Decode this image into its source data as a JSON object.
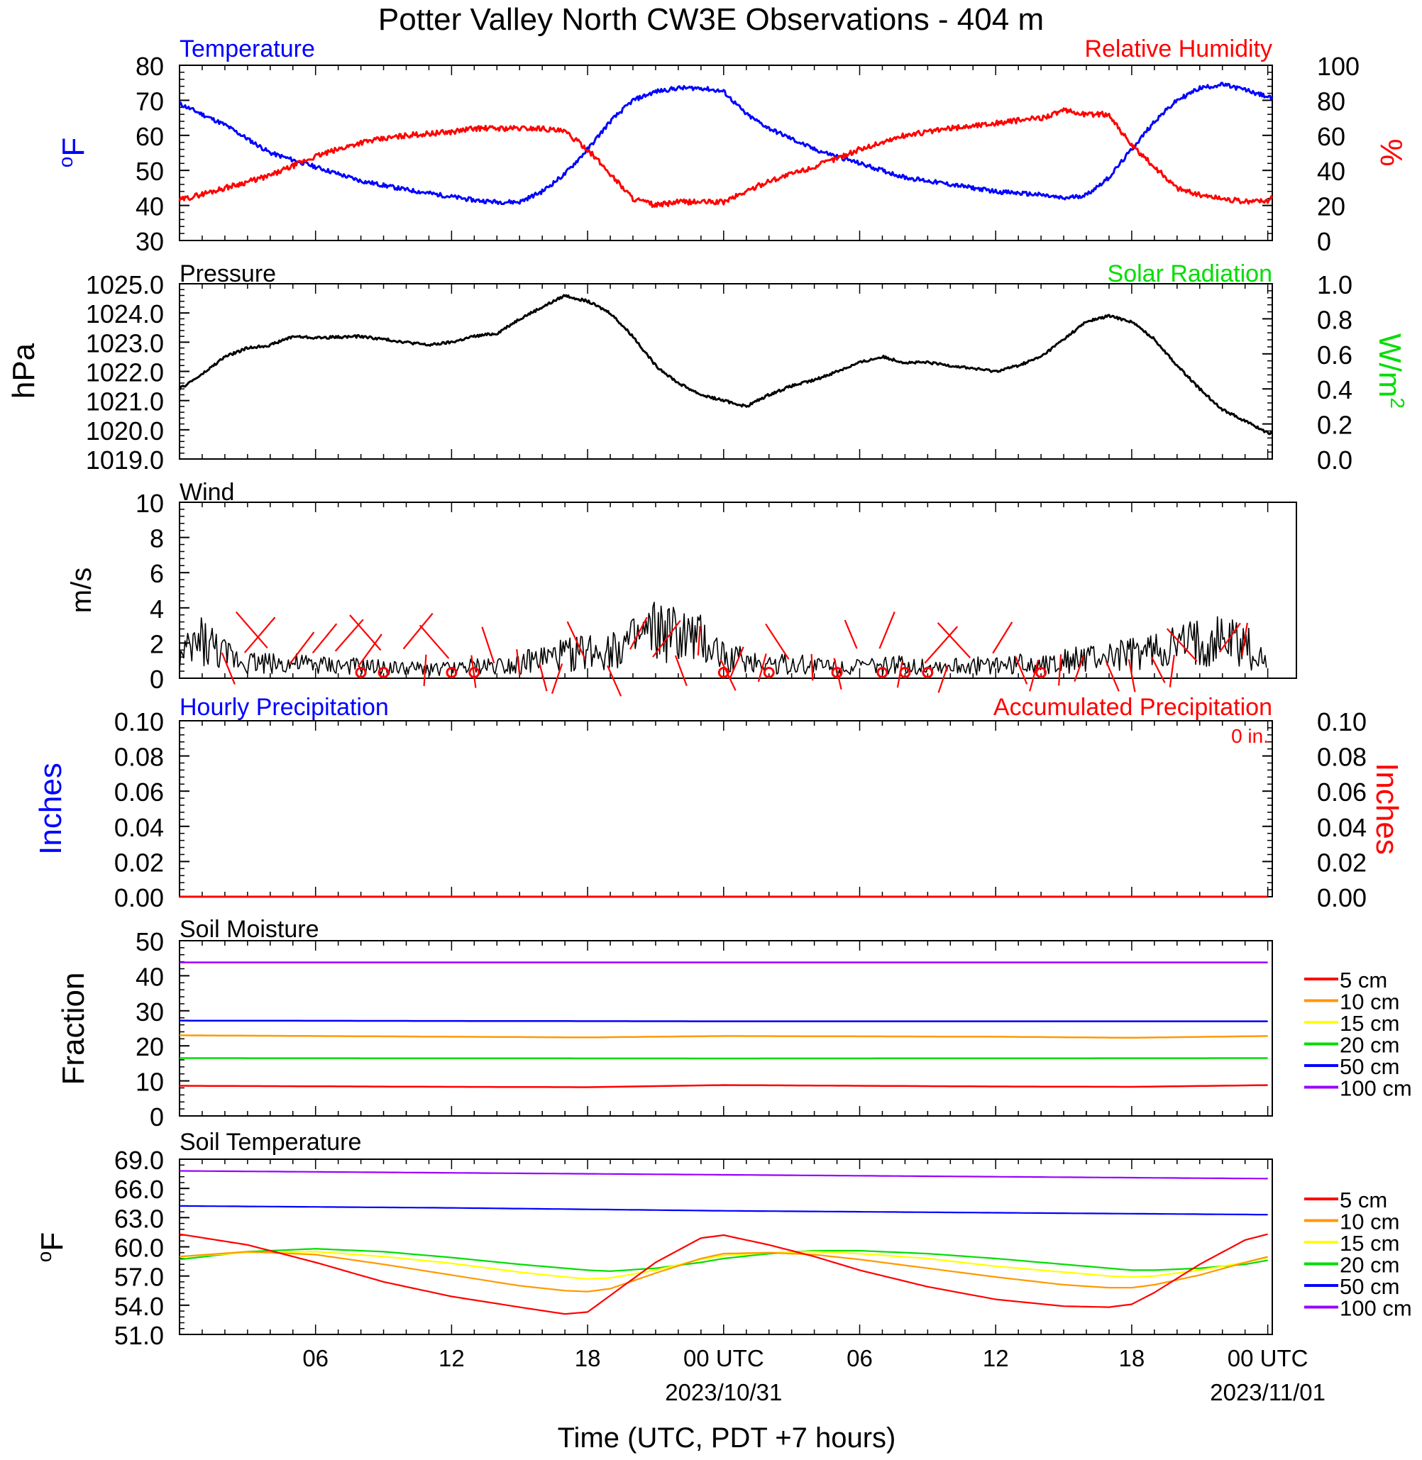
{
  "title": "Potter Valley North CW3E Observations - 404 m",
  "x_axis": {
    "label": "Time (UTC, PDT +7 hours)",
    "ticks": [
      {
        "hour": 6,
        "label": "06",
        "date": ""
      },
      {
        "hour": 12,
        "label": "12",
        "date": ""
      },
      {
        "hour": 18,
        "label": "18",
        "date": ""
      },
      {
        "hour": 24,
        "label": "00 UTC",
        "date": "2023/10/31"
      },
      {
        "hour": 30,
        "label": "06",
        "date": ""
      },
      {
        "hour": 36,
        "label": "12",
        "date": ""
      },
      {
        "hour": 42,
        "label": "18",
        "date": ""
      },
      {
        "hour": 48,
        "label": "00 UTC",
        "date": "2023/11/01"
      }
    ],
    "range_hours": [
      0,
      48.2
    ]
  },
  "colors": {
    "blue": "#0000ff",
    "red": "#ff0000",
    "green": "#00dd00",
    "black": "#000000",
    "orange": "#ff9900",
    "yellow": "#ffff00",
    "purple": "#9900ff"
  },
  "panels": {
    "temp_rh": {
      "left_title": "Temperature",
      "right_title": "Relative Humidity",
      "left_unit_base": "o",
      "left_unit_text": "F",
      "right_unit": "%",
      "left_ticks": [
        "80",
        "70",
        "60",
        "50",
        "40",
        "30"
      ],
      "right_ticks": [
        "100",
        "80",
        "60",
        "40",
        "20",
        "0"
      ]
    },
    "pressure": {
      "left_title": "Pressure",
      "right_title": "Solar Radiation",
      "left_unit": "hPa",
      "right_unit_text": "W/m",
      "right_unit_sup": "2",
      "left_ticks": [
        "1025.0",
        "1024.0",
        "1023.0",
        "1022.0",
        "1021.0",
        "1020.0",
        "1019.0"
      ],
      "right_ticks": [
        "1.0",
        "0.8",
        "0.6",
        "0.4",
        "0.2",
        "0.0"
      ]
    },
    "wind": {
      "left_title": "Wind",
      "left_unit": "m/s",
      "left_ticks": [
        "10",
        "8",
        "6",
        "4",
        "2",
        "0"
      ]
    },
    "precip": {
      "left_title": "Hourly Precipitation",
      "right_title": "Accumulated Precipitation",
      "annotation": "0 in.",
      "left_unit": "Inches",
      "right_unit": "Inches",
      "left_ticks": [
        "0.10",
        "0.08",
        "0.06",
        "0.04",
        "0.02",
        "0.00"
      ],
      "right_ticks": [
        "0.10",
        "0.08",
        "0.06",
        "0.04",
        "0.02",
        "0.00"
      ]
    },
    "soil_moisture": {
      "left_title": "Soil Moisture",
      "left_unit": "Fraction",
      "left_ticks": [
        "50",
        "40",
        "30",
        "20",
        "10",
        "0"
      ],
      "legend": [
        "5 cm",
        "10 cm",
        "15 cm",
        "20 cm",
        "50 cm",
        "100 cm"
      ]
    },
    "soil_temp": {
      "left_title": "Soil Temperature",
      "left_unit_base": "o",
      "left_unit_text": "F",
      "left_ticks": [
        "69.0",
        "66.0",
        "63.0",
        "60.0",
        "57.0",
        "54.0",
        "51.0"
      ],
      "legend": [
        "5 cm",
        "10 cm",
        "15 cm",
        "20 cm",
        "50 cm",
        "100 cm"
      ]
    }
  },
  "chart_data": [
    {
      "type": "line",
      "title": "Temperature",
      "ylabel": "°F",
      "ylim": [
        30,
        80
      ],
      "x_unit": "hours since 2023/10/30 00 UTC",
      "series": [
        {
          "name": "Temperature",
          "color": "#0000ff",
          "x": [
            0,
            2,
            4,
            6,
            8,
            10,
            12,
            13,
            14,
            15,
            16,
            17,
            18,
            19,
            20,
            21,
            22,
            23,
            24,
            25,
            26,
            28,
            30,
            32,
            34,
            36,
            38,
            39,
            40,
            41,
            42,
            43,
            44,
            45,
            46,
            47,
            48,
            48.2
          ],
          "y": [
            69,
            63,
            55,
            51,
            47,
            44.5,
            42.5,
            41.5,
            41,
            41,
            44,
            49,
            56,
            64,
            70,
            72.5,
            73.5,
            73.5,
            72.5,
            66,
            62,
            56,
            52,
            48,
            46,
            44,
            43,
            42,
            43,
            48,
            56,
            64,
            70,
            73.5,
            74.5,
            73,
            71,
            70.5
          ]
        },
        {
          "name": "Relative Humidity",
          "color": "#ff0000",
          "axis": "right",
          "ylim": [
            0,
            100
          ],
          "x": [
            0,
            2,
            4,
            6,
            8,
            10,
            12,
            13,
            14,
            15,
            16,
            17,
            18,
            19,
            20,
            21,
            22,
            23,
            24,
            25,
            26,
            28,
            30,
            32,
            34,
            36,
            38,
            39,
            40,
            41,
            42,
            43,
            44,
            45,
            46,
            47,
            48,
            48.2
          ],
          "y": [
            23,
            30,
            37,
            48,
            56,
            60,
            62,
            64,
            64,
            64,
            64,
            62,
            52,
            38,
            24,
            20,
            22,
            22,
            22,
            28,
            34,
            42,
            52,
            60,
            64,
            67,
            70,
            74,
            72,
            72,
            54,
            42,
            30,
            26,
            24,
            22,
            23,
            24
          ]
        }
      ]
    },
    {
      "type": "line",
      "title": "Pressure",
      "ylabel": "hPa",
      "ylim": [
        1019.0,
        1025.0
      ],
      "series": [
        {
          "name": "Pressure",
          "color": "#000000",
          "x": [
            0,
            1,
            2,
            3,
            4,
            5,
            6,
            8,
            10,
            11,
            12,
            13,
            14,
            15,
            16,
            17,
            18,
            19,
            20,
            21,
            22,
            23,
            24,
            25,
            26,
            27,
            28,
            29,
            30,
            31,
            32,
            33,
            34,
            35,
            36,
            37,
            38,
            39,
            40,
            41,
            42,
            43,
            44,
            45,
            46,
            47,
            48,
            48.2
          ],
          "y": [
            1021.4,
            1021.9,
            1022.5,
            1022.8,
            1022.9,
            1023.2,
            1023.15,
            1023.2,
            1023.0,
            1022.9,
            1023.0,
            1023.2,
            1023.3,
            1023.8,
            1024.2,
            1024.6,
            1024.4,
            1024.0,
            1023.2,
            1022.2,
            1021.6,
            1021.2,
            1021.0,
            1020.8,
            1021.2,
            1021.5,
            1021.7,
            1022.0,
            1022.3,
            1022.5,
            1022.3,
            1022.3,
            1022.2,
            1022.1,
            1022.0,
            1022.2,
            1022.5,
            1023.1,
            1023.7,
            1023.9,
            1023.7,
            1023.1,
            1022.2,
            1021.4,
            1020.7,
            1020.3,
            1019.9,
            1019.9
          ]
        }
      ]
    },
    {
      "type": "line",
      "title": "Wind",
      "ylabel": "m/s",
      "ylim": [
        0,
        10
      ],
      "series": [
        {
          "name": "Wind speed",
          "color": "#000000",
          "x": [
            0,
            1,
            2,
            3,
            4,
            6,
            8,
            10,
            12,
            13,
            14,
            15,
            16,
            18,
            20,
            21,
            22,
            23,
            24,
            25,
            26,
            28,
            30,
            32,
            34,
            36,
            38,
            40,
            42,
            44,
            46,
            47,
            48
          ],
          "y": [
            1.0,
            2.0,
            1.2,
            0.9,
            0.8,
            0.7,
            0.6,
            0.5,
            0.5,
            0.6,
            0.7,
            0.8,
            1.0,
            1.4,
            1.8,
            2.4,
            2.2,
            1.9,
            1.2,
            0.9,
            0.8,
            0.7,
            0.6,
            0.7,
            0.6,
            0.7,
            0.8,
            1.0,
            1.2,
            1.6,
            2.0,
            1.8,
            0.6
          ]
        },
        {
          "name": "Calm markers",
          "color": "#ff0000",
          "x": [
            8,
            9,
            12,
            13,
            24,
            26,
            29,
            31,
            32,
            33,
            38
          ]
        }
      ]
    },
    {
      "type": "line",
      "title": "Hourly Precipitation",
      "ylabel": "Inches",
      "ylim": [
        0,
        0.1
      ],
      "series": [
        {
          "name": "Hourly Precipitation",
          "color": "#0000ff",
          "x": [
            0,
            48.2
          ],
          "y": [
            0,
            0
          ]
        },
        {
          "name": "Accumulated Precipitation",
          "color": "#ff0000",
          "x": [
            0,
            48.2
          ],
          "y": [
            0,
            0
          ]
        }
      ]
    },
    {
      "type": "line",
      "title": "Soil Moisture",
      "ylabel": "Fraction",
      "ylim": [
        0,
        50
      ],
      "series": [
        {
          "name": "5 cm",
          "color": "#ff0000",
          "x": [
            0,
            12,
            18,
            24,
            36,
            42,
            48.2
          ],
          "y": [
            8.6,
            8.3,
            8.2,
            8.8,
            8.4,
            8.3,
            8.8
          ]
        },
        {
          "name": "10 cm",
          "color": "#ff9900",
          "x": [
            0,
            12,
            18,
            24,
            36,
            42,
            48.2
          ],
          "y": [
            23.0,
            22.6,
            22.4,
            22.8,
            22.6,
            22.3,
            22.8
          ]
        },
        {
          "name": "15 cm",
          "color": "#ffff00",
          "x": [],
          "y": []
        },
        {
          "name": "20 cm",
          "color": "#00dd00",
          "x": [
            0,
            24,
            48.2
          ],
          "y": [
            16.5,
            16.4,
            16.5
          ]
        },
        {
          "name": "50 cm",
          "color": "#0000ff",
          "x": [
            0,
            24,
            48.2
          ],
          "y": [
            27.2,
            27.0,
            27.0
          ]
        },
        {
          "name": "100 cm",
          "color": "#9900ff",
          "x": [
            0,
            24,
            48.2
          ],
          "y": [
            43.8,
            43.8,
            43.8
          ]
        }
      ]
    },
    {
      "type": "line",
      "title": "Soil Temperature",
      "ylabel": "°F",
      "ylim": [
        51.0,
        69.0
      ],
      "series": [
        {
          "name": "5 cm",
          "color": "#ff0000",
          "x": [
            0,
            3,
            6,
            9,
            12,
            15,
            17,
            18,
            19,
            21,
            23,
            24,
            26,
            28,
            30,
            33,
            36,
            39,
            41,
            42,
            43,
            45,
            47,
            48,
            48.2
          ],
          "y": [
            61.3,
            60.2,
            58.4,
            56.4,
            54.9,
            53.8,
            53.1,
            53.3,
            55.0,
            58.4,
            60.9,
            61.2,
            60.2,
            59.0,
            57.6,
            55.9,
            54.6,
            53.9,
            53.8,
            54.1,
            55.3,
            58.2,
            60.7,
            61.3,
            61.4
          ]
        },
        {
          "name": "10 cm",
          "color": "#ff9900",
          "x": [
            0,
            3,
            6,
            9,
            12,
            15,
            17,
            18,
            19,
            21,
            23,
            24,
            26,
            28,
            30,
            33,
            36,
            39,
            41,
            42,
            43,
            45,
            47,
            48.2
          ],
          "y": [
            59.0,
            59.5,
            59.2,
            58.2,
            57.1,
            56.0,
            55.5,
            55.4,
            55.7,
            57.3,
            58.8,
            59.3,
            59.4,
            59.2,
            58.7,
            57.8,
            56.9,
            56.1,
            55.8,
            55.8,
            56.1,
            57.1,
            58.4,
            59.1
          ]
        },
        {
          "name": "15 cm",
          "color": "#ffff00",
          "x": [
            0,
            3,
            6,
            9,
            12,
            15,
            17,
            18,
            19,
            21,
            23,
            24,
            26,
            28,
            30,
            33,
            36,
            39,
            41,
            42,
            43,
            45,
            47,
            48.2
          ],
          "y": [
            59.0,
            59.4,
            59.5,
            59.0,
            58.3,
            57.4,
            56.9,
            56.7,
            56.8,
            57.6,
            58.7,
            59.1,
            59.4,
            59.5,
            59.3,
            58.8,
            58.0,
            57.4,
            57.0,
            56.9,
            57.0,
            57.6,
            58.4,
            59.0
          ]
        },
        {
          "name": "20 cm",
          "color": "#00dd00",
          "x": [
            0,
            3,
            6,
            9,
            12,
            15,
            17,
            18,
            19,
            21,
            23,
            24,
            26,
            28,
            30,
            33,
            36,
            39,
            41,
            42,
            43,
            45,
            47,
            48.2
          ],
          "y": [
            58.7,
            59.5,
            59.8,
            59.5,
            58.9,
            58.2,
            57.8,
            57.6,
            57.5,
            57.8,
            58.4,
            58.8,
            59.3,
            59.6,
            59.6,
            59.3,
            58.8,
            58.2,
            57.8,
            57.6,
            57.6,
            57.8,
            58.2,
            58.7
          ]
        },
        {
          "name": "50 cm",
          "color": "#0000ff",
          "x": [
            0,
            12,
            24,
            36,
            48.2
          ],
          "y": [
            64.2,
            64.0,
            63.7,
            63.5,
            63.3
          ]
        },
        {
          "name": "100 cm",
          "color": "#9900ff",
          "x": [
            0,
            12,
            24,
            36,
            48.2
          ],
          "y": [
            67.8,
            67.6,
            67.4,
            67.2,
            67.0
          ]
        }
      ]
    }
  ]
}
